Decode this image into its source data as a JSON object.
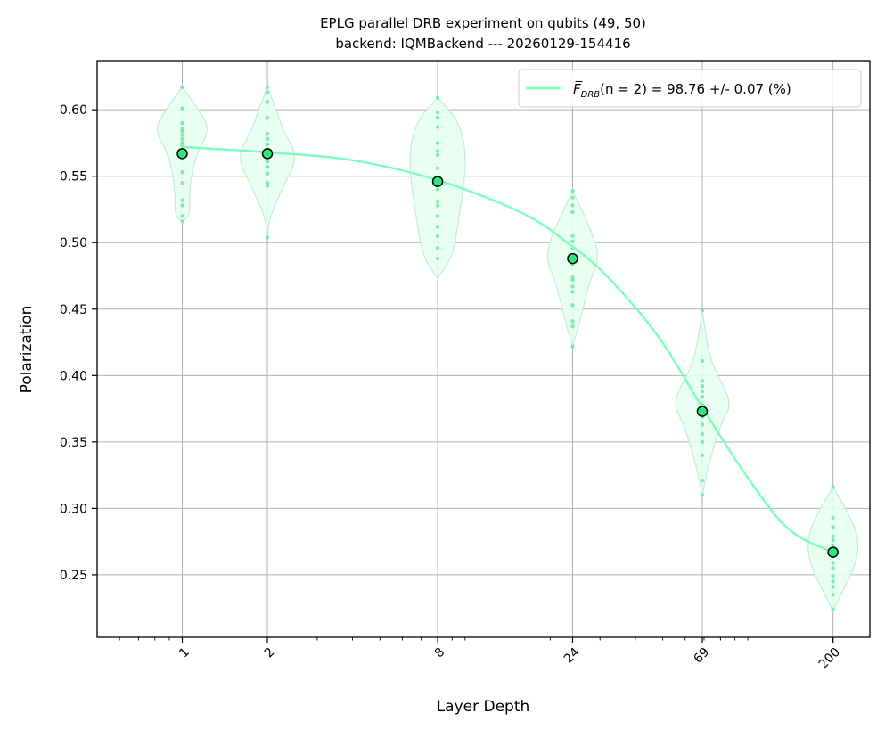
{
  "chart_data": {
    "type": "scatter",
    "title_line1": "EPLG parallel DRB experiment on qubits (49, 50)",
    "title_line2": "backend: IQMBackend --- 20260129-154416",
    "xlabel": "Layer Depth",
    "ylabel": "Polarization",
    "x_scale": "log",
    "xlim": [
      0.5,
      270
    ],
    "ylim": [
      0.203,
      0.637
    ],
    "x_ticks": [
      1,
      2,
      8,
      24,
      69,
      200
    ],
    "x_tick_labels": [
      "1",
      "2",
      "8",
      "24",
      "69",
      "200"
    ],
    "y_ticks": [
      0.25,
      0.3,
      0.35,
      0.4,
      0.45,
      0.5,
      0.55,
      0.6
    ],
    "y_tick_labels": [
      "0.25",
      "0.30",
      "0.35",
      "0.40",
      "0.45",
      "0.50",
      "0.55",
      "0.60"
    ],
    "grid": true,
    "legend_position": "upper right",
    "legend": {
      "symbol": "F̅",
      "subscript": "DRB",
      "paren": "(n = 2)",
      "value_text": " = 98.76 +/- 0.07 (%)"
    },
    "colors": {
      "series": "#7effc0",
      "fit_line": "#7effc0",
      "violin_fill": "#e6fff0",
      "violin_edge": "#c7ecd5",
      "mean_marker": "#2ee87a",
      "mean_edge": "#000000",
      "sample_points": "#6fe7aa"
    },
    "mean_points": [
      {
        "x": 1,
        "y": 0.567
      },
      {
        "x": 2,
        "y": 0.567
      },
      {
        "x": 8,
        "y": 0.546
      },
      {
        "x": 24,
        "y": 0.488
      },
      {
        "x": 69,
        "y": 0.373
      },
      {
        "x": 200,
        "y": 0.267
      }
    ],
    "fit_curve": {
      "x": [
        1,
        2,
        4,
        8,
        16,
        24,
        32,
        48,
        69,
        100,
        140,
        200
      ],
      "y": [
        0.572,
        0.568,
        0.562,
        0.547,
        0.522,
        0.497,
        0.474,
        0.43,
        0.376,
        0.323,
        0.284,
        0.267
      ]
    },
    "violins": [
      {
        "x": 1,
        "y": [
          0.617,
          0.601,
          0.59,
          0.586,
          0.584,
          0.581,
          0.578,
          0.575,
          0.573,
          0.57,
          0.553,
          0.545,
          0.532,
          0.528,
          0.52,
          0.516
        ],
        "width": [
          0.516,
          0.0,
          0.52,
          0.06,
          0.54,
          0.055,
          0.565,
          0.1,
          0.585,
          0.22,
          0.6,
          0.13,
          0.617,
          0.0
        ]
      },
      {
        "x": 2,
        "y": [
          0.617,
          0.613,
          0.606,
          0.594,
          0.582,
          0.578,
          0.574,
          0.57,
          0.566,
          0.561,
          0.557,
          0.552,
          0.545,
          0.543,
          0.504
        ],
        "width": [
          0.504,
          0.0,
          0.52,
          0.02,
          0.545,
          0.14,
          0.565,
          0.24,
          0.585,
          0.12,
          0.6,
          0.07,
          0.617,
          0.0
        ]
      },
      {
        "x": 8,
        "y": [
          0.609,
          0.598,
          0.594,
          0.587,
          0.575,
          0.569,
          0.566,
          0.556,
          0.548,
          0.54,
          0.531,
          0.528,
          0.52,
          0.512,
          0.505,
          0.496,
          0.488
        ],
        "width": [
          0.473,
          0.0,
          0.49,
          0.12,
          0.52,
          0.17,
          0.56,
          0.23,
          0.59,
          0.18,
          0.609,
          0.0
        ]
      },
      {
        "x": 24,
        "y": [
          0.539,
          0.534,
          0.528,
          0.523,
          0.505,
          0.501,
          0.496,
          0.488,
          0.484,
          0.474,
          0.472,
          0.467,
          0.463,
          0.453,
          0.441,
          0.437,
          0.422
        ],
        "width": [
          0.422,
          0.0,
          0.445,
          0.07,
          0.47,
          0.13,
          0.49,
          0.22,
          0.515,
          0.12,
          0.539,
          0.0
        ]
      },
      {
        "x": 69,
        "y": [
          0.449,
          0.411,
          0.396,
          0.392,
          0.388,
          0.384,
          0.378,
          0.373,
          0.369,
          0.363,
          0.356,
          0.35,
          0.34,
          0.321,
          0.31
        ],
        "width": [
          0.309,
          0.0,
          0.33,
          0.04,
          0.365,
          0.15,
          0.38,
          0.24,
          0.41,
          0.06,
          0.449,
          0.0
        ]
      },
      {
        "x": 200,
        "y": [
          0.316,
          0.293,
          0.286,
          0.279,
          0.276,
          0.272,
          0.269,
          0.264,
          0.259,
          0.255,
          0.249,
          0.245,
          0.241,
          0.235,
          0.224
        ],
        "width": [
          0.223,
          0.0,
          0.24,
          0.09,
          0.26,
          0.19,
          0.28,
          0.2,
          0.3,
          0.1,
          0.316,
          0.0
        ]
      }
    ]
  }
}
